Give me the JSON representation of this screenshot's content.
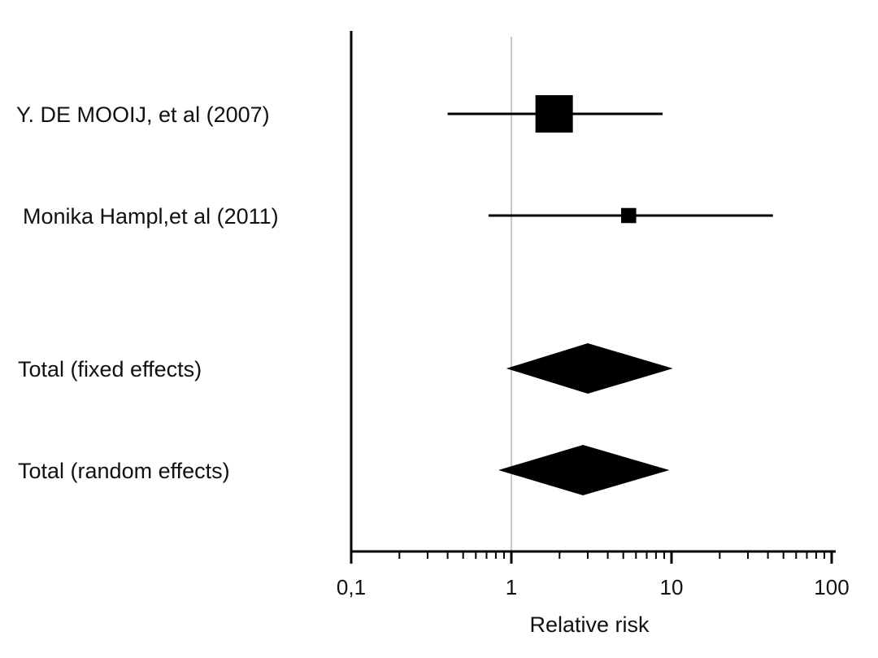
{
  "chart_data": {
    "type": "forest",
    "xlabel": "Relative risk",
    "xscale": "log",
    "xlim": [
      0.1,
      100
    ],
    "reference_line": 1,
    "tick_values": [
      0.1,
      1,
      10,
      100
    ],
    "tick_labels": [
      "0,1",
      "1",
      "10",
      "100"
    ],
    "studies": [
      {
        "label": "Y. DE MOOIJ, et al (2007)",
        "estimate": 1.85,
        "ci_low": 0.4,
        "ci_high": 8.8,
        "marker": "square",
        "weight": 0.86
      },
      {
        "label": "Monika Hampl,et al (2011)",
        "estimate": 5.4,
        "ci_low": 0.72,
        "ci_high": 43,
        "marker": "square",
        "weight": 0.14
      }
    ],
    "pooled": [
      {
        "label": "Total (fixed effects)",
        "estimate": 3.0,
        "ci_low": 0.93,
        "ci_high": 10.2,
        "marker": "diamond"
      },
      {
        "label": "Total (random effects)",
        "estimate": 2.8,
        "ci_low": 0.83,
        "ci_high": 9.7,
        "marker": "diamond"
      }
    ]
  }
}
